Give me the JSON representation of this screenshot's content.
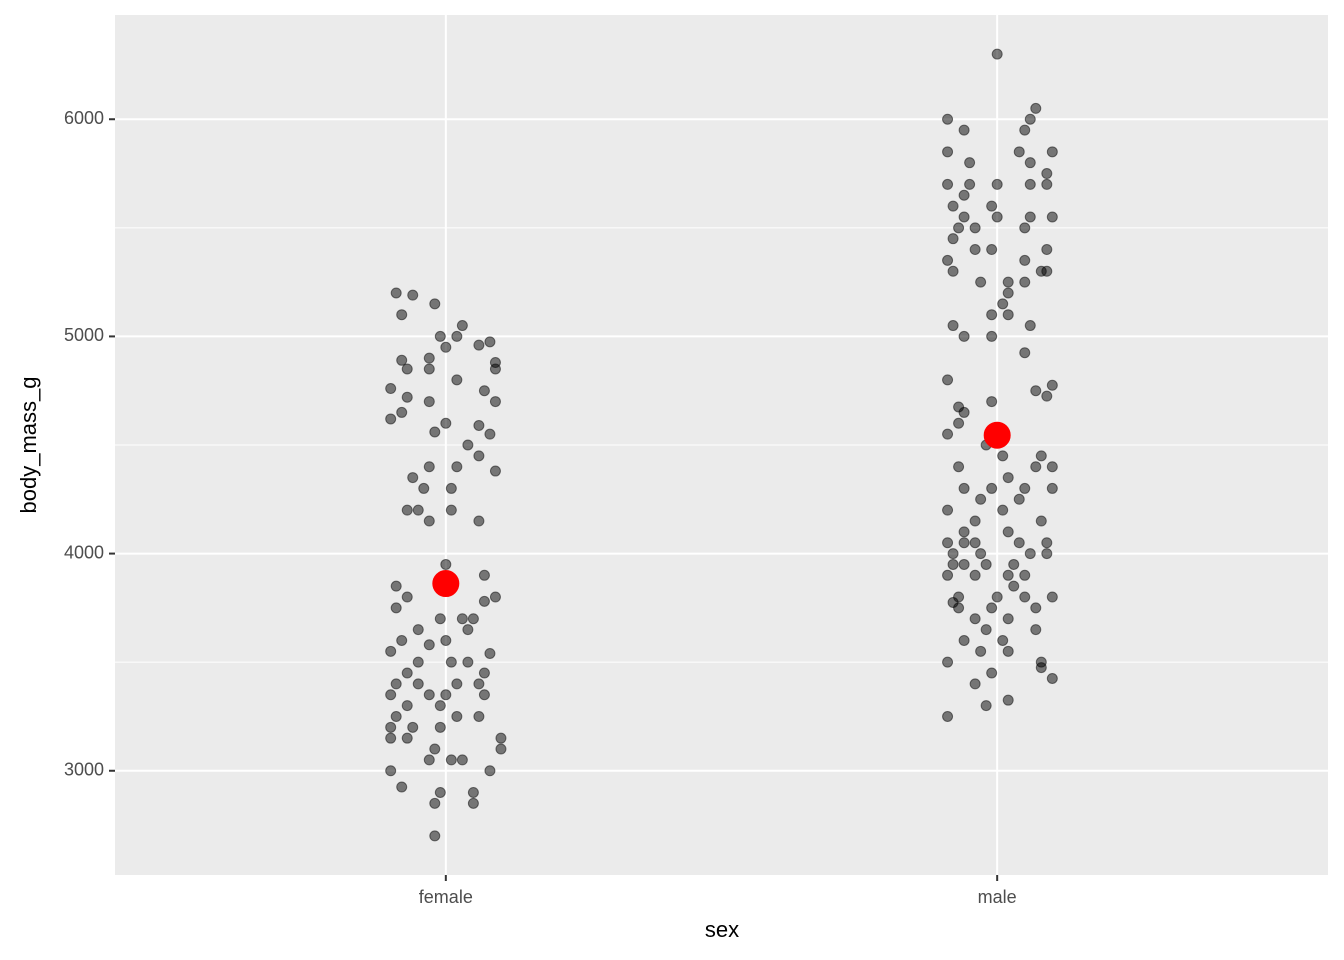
{
  "chart_data": {
    "type": "scatter",
    "xlabel": "sex",
    "ylabel": "body_mass_g",
    "xlim": [
      0.4,
      2.6
    ],
    "xticks": [
      {
        "value": 1,
        "label": "female"
      },
      {
        "value": 2,
        "label": "male"
      }
    ],
    "ylim": [
      2520,
      6480
    ],
    "yticks": [
      3000,
      4000,
      5000,
      6000
    ],
    "y_minor_grid": [
      3500,
      4500,
      5500
    ],
    "grid": true,
    "series": [
      {
        "color": "#000000",
        "opacity": 0.5,
        "x": [
          0.91,
          0.94,
          0.98,
          0.92,
          1.03,
          0.99,
          1.02,
          1.08,
          1.06,
          1.0,
          0.97,
          0.92,
          1.09,
          0.93,
          0.97,
          1.09,
          1.02,
          0.9,
          1.07,
          0.93,
          0.97,
          1.09,
          0.92,
          0.9,
          1.0,
          1.06,
          0.98,
          1.08,
          1.04,
          1.06,
          0.97,
          1.02,
          1.09,
          0.94,
          0.96,
          1.01,
          0.93,
          0.95,
          1.01,
          0.97,
          1.06,
          1.0,
          1.07,
          0.91,
          0.93,
          1.09,
          1.07,
          0.91,
          0.99,
          1.03,
          1.05,
          0.95,
          1.04,
          0.92,
          1.0,
          0.97,
          0.9,
          1.08,
          0.95,
          1.01,
          1.04,
          0.93,
          1.07,
          0.91,
          0.95,
          1.02,
          1.06,
          0.9,
          0.97,
          1.0,
          1.07,
          0.93,
          0.99,
          0.91,
          1.02,
          1.06,
          0.9,
          0.94,
          0.99,
          0.9,
          0.93,
          1.1,
          1.1,
          0.98,
          0.97,
          1.01,
          1.03,
          0.9,
          1.08,
          0.99,
          1.05,
          0.98,
          1.05,
          0.98,
          0.92,
          2.0,
          2.07,
          1.91,
          2.06,
          1.94,
          2.05,
          2.1,
          1.91,
          2.04,
          1.95,
          2.06,
          2.09,
          1.91,
          1.95,
          2.0,
          2.06,
          2.09,
          1.94,
          1.92,
          1.99,
          1.94,
          2.0,
          2.06,
          2.1,
          1.93,
          1.96,
          2.05,
          1.92,
          1.96,
          1.99,
          2.09,
          1.91,
          2.05,
          1.92,
          2.08,
          2.09,
          1.97,
          2.02,
          2.05,
          2.02,
          2.01,
          1.99,
          2.02,
          1.92,
          2.06,
          1.94,
          1.99,
          2.05,
          1.91,
          2.1,
          2.07,
          2.09,
          1.99,
          1.93,
          1.94,
          1.93,
          1.91,
          1.98,
          2.01,
          2.08,
          1.93,
          2.07,
          2.1,
          2.02,
          1.94,
          1.99,
          2.05,
          2.1,
          1.97,
          2.04,
          1.91,
          2.01,
          1.96,
          2.08,
          1.94,
          2.02,
          1.91,
          1.94,
          1.96,
          2.04,
          2.09,
          1.92,
          1.97,
          2.06,
          2.09,
          1.92,
          1.94,
          1.98,
          2.03,
          1.91,
          1.96,
          2.02,
          2.05,
          2.03,
          1.93,
          2.0,
          2.05,
          2.1,
          1.92,
          1.93,
          1.99,
          2.07,
          1.96,
          2.02,
          1.98,
          2.07,
          1.94,
          2.01,
          1.97,
          2.02,
          1.91,
          2.08,
          2.08,
          1.99,
          2.1,
          1.96,
          2.02,
          1.98,
          1.91
        ],
        "values": [
          5200,
          5190,
          5150,
          5100,
          5050,
          5000,
          5000,
          4975,
          4960,
          4950,
          4900,
          4890,
          4880,
          4850,
          4850,
          4850,
          4800,
          4760,
          4750,
          4720,
          4700,
          4700,
          4650,
          4620,
          4600,
          4590,
          4560,
          4550,
          4500,
          4450,
          4400,
          4400,
          4380,
          4350,
          4300,
          4300,
          4200,
          4200,
          4200,
          4150,
          4150,
          3950,
          3900,
          3850,
          3800,
          3800,
          3780,
          3750,
          3700,
          3700,
          3700,
          3650,
          3650,
          3600,
          3600,
          3580,
          3550,
          3540,
          3500,
          3500,
          3500,
          3450,
          3450,
          3400,
          3400,
          3400,
          3400,
          3350,
          3350,
          3350,
          3350,
          3300,
          3300,
          3250,
          3250,
          3250,
          3200,
          3200,
          3200,
          3150,
          3150,
          3150,
          3100,
          3100,
          3050,
          3050,
          3050,
          3000,
          3000,
          2900,
          2900,
          2850,
          2850,
          2700,
          2925,
          6300,
          6050,
          6000,
          6000,
          5950,
          5950,
          5850,
          5850,
          5850,
          5800,
          5800,
          5750,
          5700,
          5700,
          5700,
          5700,
          5700,
          5650,
          5600,
          5600,
          5550,
          5550,
          5550,
          5550,
          5500,
          5500,
          5500,
          5450,
          5400,
          5400,
          5400,
          5350,
          5350,
          5300,
          5300,
          5300,
          5250,
          5250,
          5250,
          5200,
          5150,
          5100,
          5100,
          5050,
          5050,
          5000,
          5000,
          4925,
          4800,
          4775,
          4750,
          4725,
          4700,
          4675,
          4650,
          4600,
          4550,
          4500,
          4450,
          4450,
          4400,
          4400,
          4400,
          4350,
          4300,
          4300,
          4300,
          4300,
          4250,
          4250,
          4200,
          4200,
          4150,
          4150,
          4100,
          4100,
          4050,
          4050,
          4050,
          4050,
          4050,
          4000,
          4000,
          4000,
          4000,
          3950,
          3950,
          3950,
          3950,
          3900,
          3900,
          3900,
          3900,
          3850,
          3800,
          3800,
          3800,
          3800,
          3775,
          3750,
          3750,
          3750,
          3700,
          3700,
          3650,
          3650,
          3600,
          3600,
          3550,
          3550,
          3500,
          3500,
          3475,
          3450,
          3425,
          3400,
          3325,
          3300,
          3250
        ]
      },
      {
        "color": "#ff0000",
        "x": [
          1,
          2
        ],
        "values": [
          3862,
          4545
        ]
      }
    ]
  }
}
